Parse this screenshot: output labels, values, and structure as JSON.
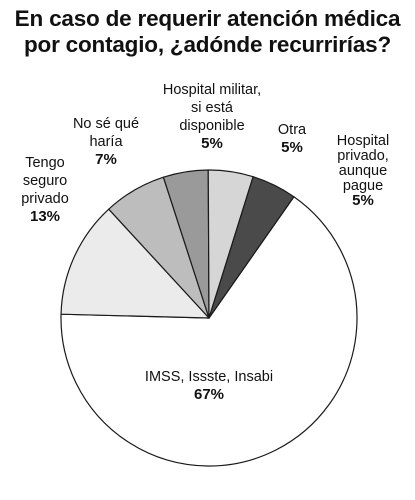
{
  "title_lines": [
    "En caso de requerir atención médica",
    "por contagio, ¿adónde recurrirías?"
  ],
  "chart_data": {
    "type": "pie",
    "title": "En caso de requerir atención médica por contagio, ¿adónde recurrirías?",
    "slices": [
      {
        "label_lines": [
          "IMSS, Issste, Insabi"
        ],
        "value_label": "67%",
        "value": 67,
        "color": "#ffffff"
      },
      {
        "label_lines": [
          "Tengo",
          "seguro",
          "privado"
        ],
        "value_label": "13%",
        "value": 13,
        "color": "#ebebeb"
      },
      {
        "label_lines": [
          "No sé qué",
          "haría"
        ],
        "value_label": "7%",
        "value": 7,
        "color": "#bdbdbd"
      },
      {
        "label_lines": [
          "Hospital militar,",
          "si está",
          "disponible"
        ],
        "value_label": "5%",
        "value": 5,
        "color": "#9a9a9a"
      },
      {
        "label_lines": [
          "Otra"
        ],
        "value_label": "5%",
        "value": 5,
        "color": "#d6d6d6"
      },
      {
        "label_lines": [
          "Hospital",
          "privado,",
          "aunque",
          "pague"
        ],
        "value_label": "5%",
        "value": 5,
        "color": "#4a4a4a"
      }
    ]
  }
}
